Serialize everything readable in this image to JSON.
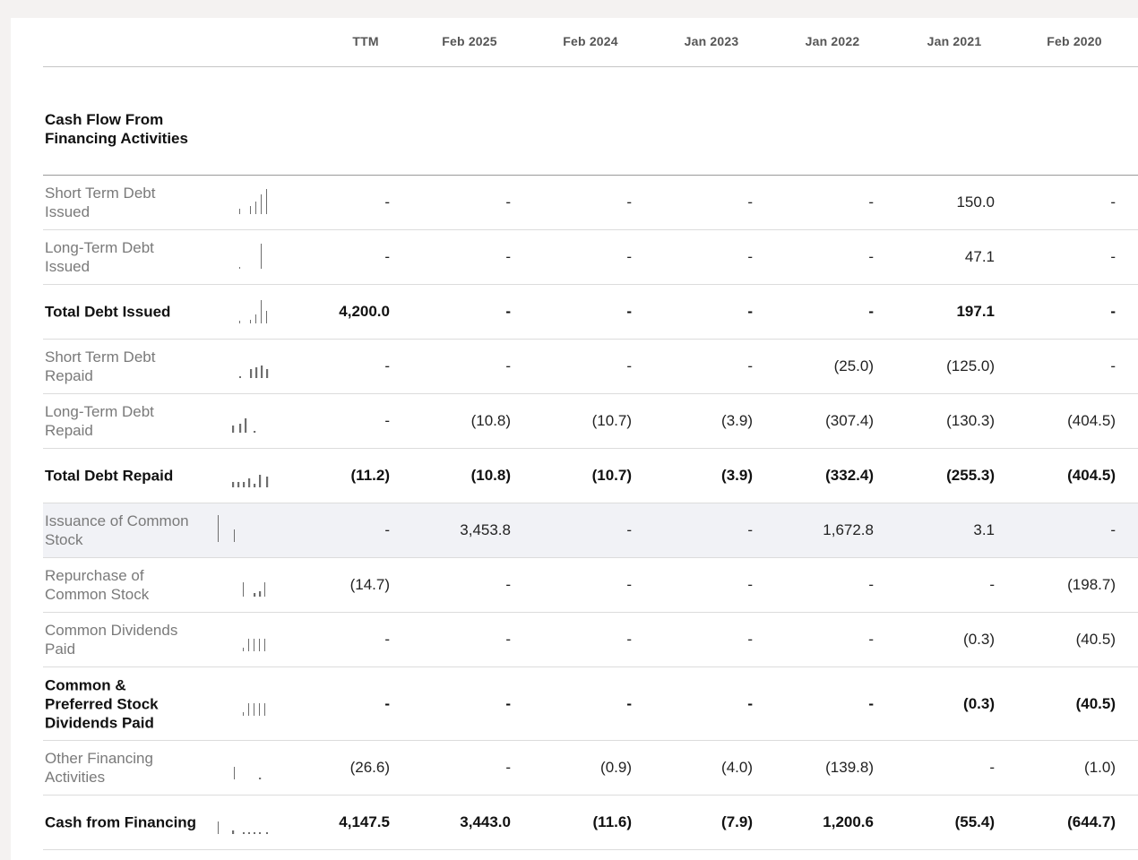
{
  "columns": [
    "TTM",
    "Feb 2025",
    "Feb 2024",
    "Jan 2023",
    "Jan 2022",
    "Jan 2021",
    "Feb 2020"
  ],
  "section_title": "Cash Flow From Financing Activities",
  "rows": [
    {
      "label": "Short Term Debt Issued",
      "bold": false,
      "highlight": false,
      "values": [
        "-",
        "-",
        "-",
        "-",
        "-",
        "150.0",
        "-"
      ]
    },
    {
      "label": "Long-Term Debt Issued",
      "bold": false,
      "highlight": false,
      "values": [
        "-",
        "-",
        "-",
        "-",
        "-",
        "47.1",
        "-"
      ]
    },
    {
      "label": "Total Debt Issued",
      "bold": true,
      "highlight": false,
      "values": [
        "4,200.0",
        "-",
        "-",
        "-",
        "-",
        "197.1",
        "-"
      ]
    },
    {
      "label": "Short Term Debt Repaid",
      "bold": false,
      "highlight": false,
      "values": [
        "-",
        "-",
        "-",
        "-",
        "(25.0)",
        "(125.0)",
        "-"
      ]
    },
    {
      "label": "Long-Term Debt Repaid",
      "bold": false,
      "highlight": false,
      "values": [
        "-",
        "(10.8)",
        "(10.7)",
        "(3.9)",
        "(307.4)",
        "(130.3)",
        "(404.5)"
      ]
    },
    {
      "label": "Total Debt Repaid",
      "bold": true,
      "highlight": false,
      "values": [
        "(11.2)",
        "(10.8)",
        "(10.7)",
        "(3.9)",
        "(332.4)",
        "(255.3)",
        "(404.5)"
      ]
    },
    {
      "label": "Issuance of Common Stock",
      "bold": false,
      "highlight": true,
      "values": [
        "-",
        "3,453.8",
        "-",
        "-",
        "1,672.8",
        "3.1",
        "-"
      ]
    },
    {
      "label": "Repurchase of Common Stock",
      "bold": false,
      "highlight": false,
      "values": [
        "(14.7)",
        "-",
        "-",
        "-",
        "-",
        "-",
        "(198.7)"
      ]
    },
    {
      "label": "Common Dividends Paid",
      "bold": false,
      "highlight": false,
      "values": [
        "-",
        "-",
        "-",
        "-",
        "-",
        "(0.3)",
        "(40.5)"
      ]
    },
    {
      "label": "Common & Preferred Stock Dividends Paid",
      "bold": true,
      "highlight": false,
      "values": [
        "-",
        "-",
        "-",
        "-",
        "-",
        "(0.3)",
        "(40.5)"
      ]
    },
    {
      "label": "Other Financing Activities",
      "bold": false,
      "highlight": false,
      "values": [
        "(26.6)",
        "-",
        "(0.9)",
        "(4.0)",
        "(139.8)",
        "-",
        "(1.0)"
      ]
    },
    {
      "label": "Cash from Financing",
      "bold": true,
      "highlight": false,
      "values": [
        "4,147.5",
        "3,443.0",
        "(11.6)",
        "(7.9)",
        "1,200.6",
        "(55.4)",
        "(644.7)"
      ]
    }
  ],
  "colors": {
    "text": "#111111",
    "muted": "#7a7a7a",
    "highlight_row": "#f1f2f6",
    "spark": "#6e6e6e"
  }
}
